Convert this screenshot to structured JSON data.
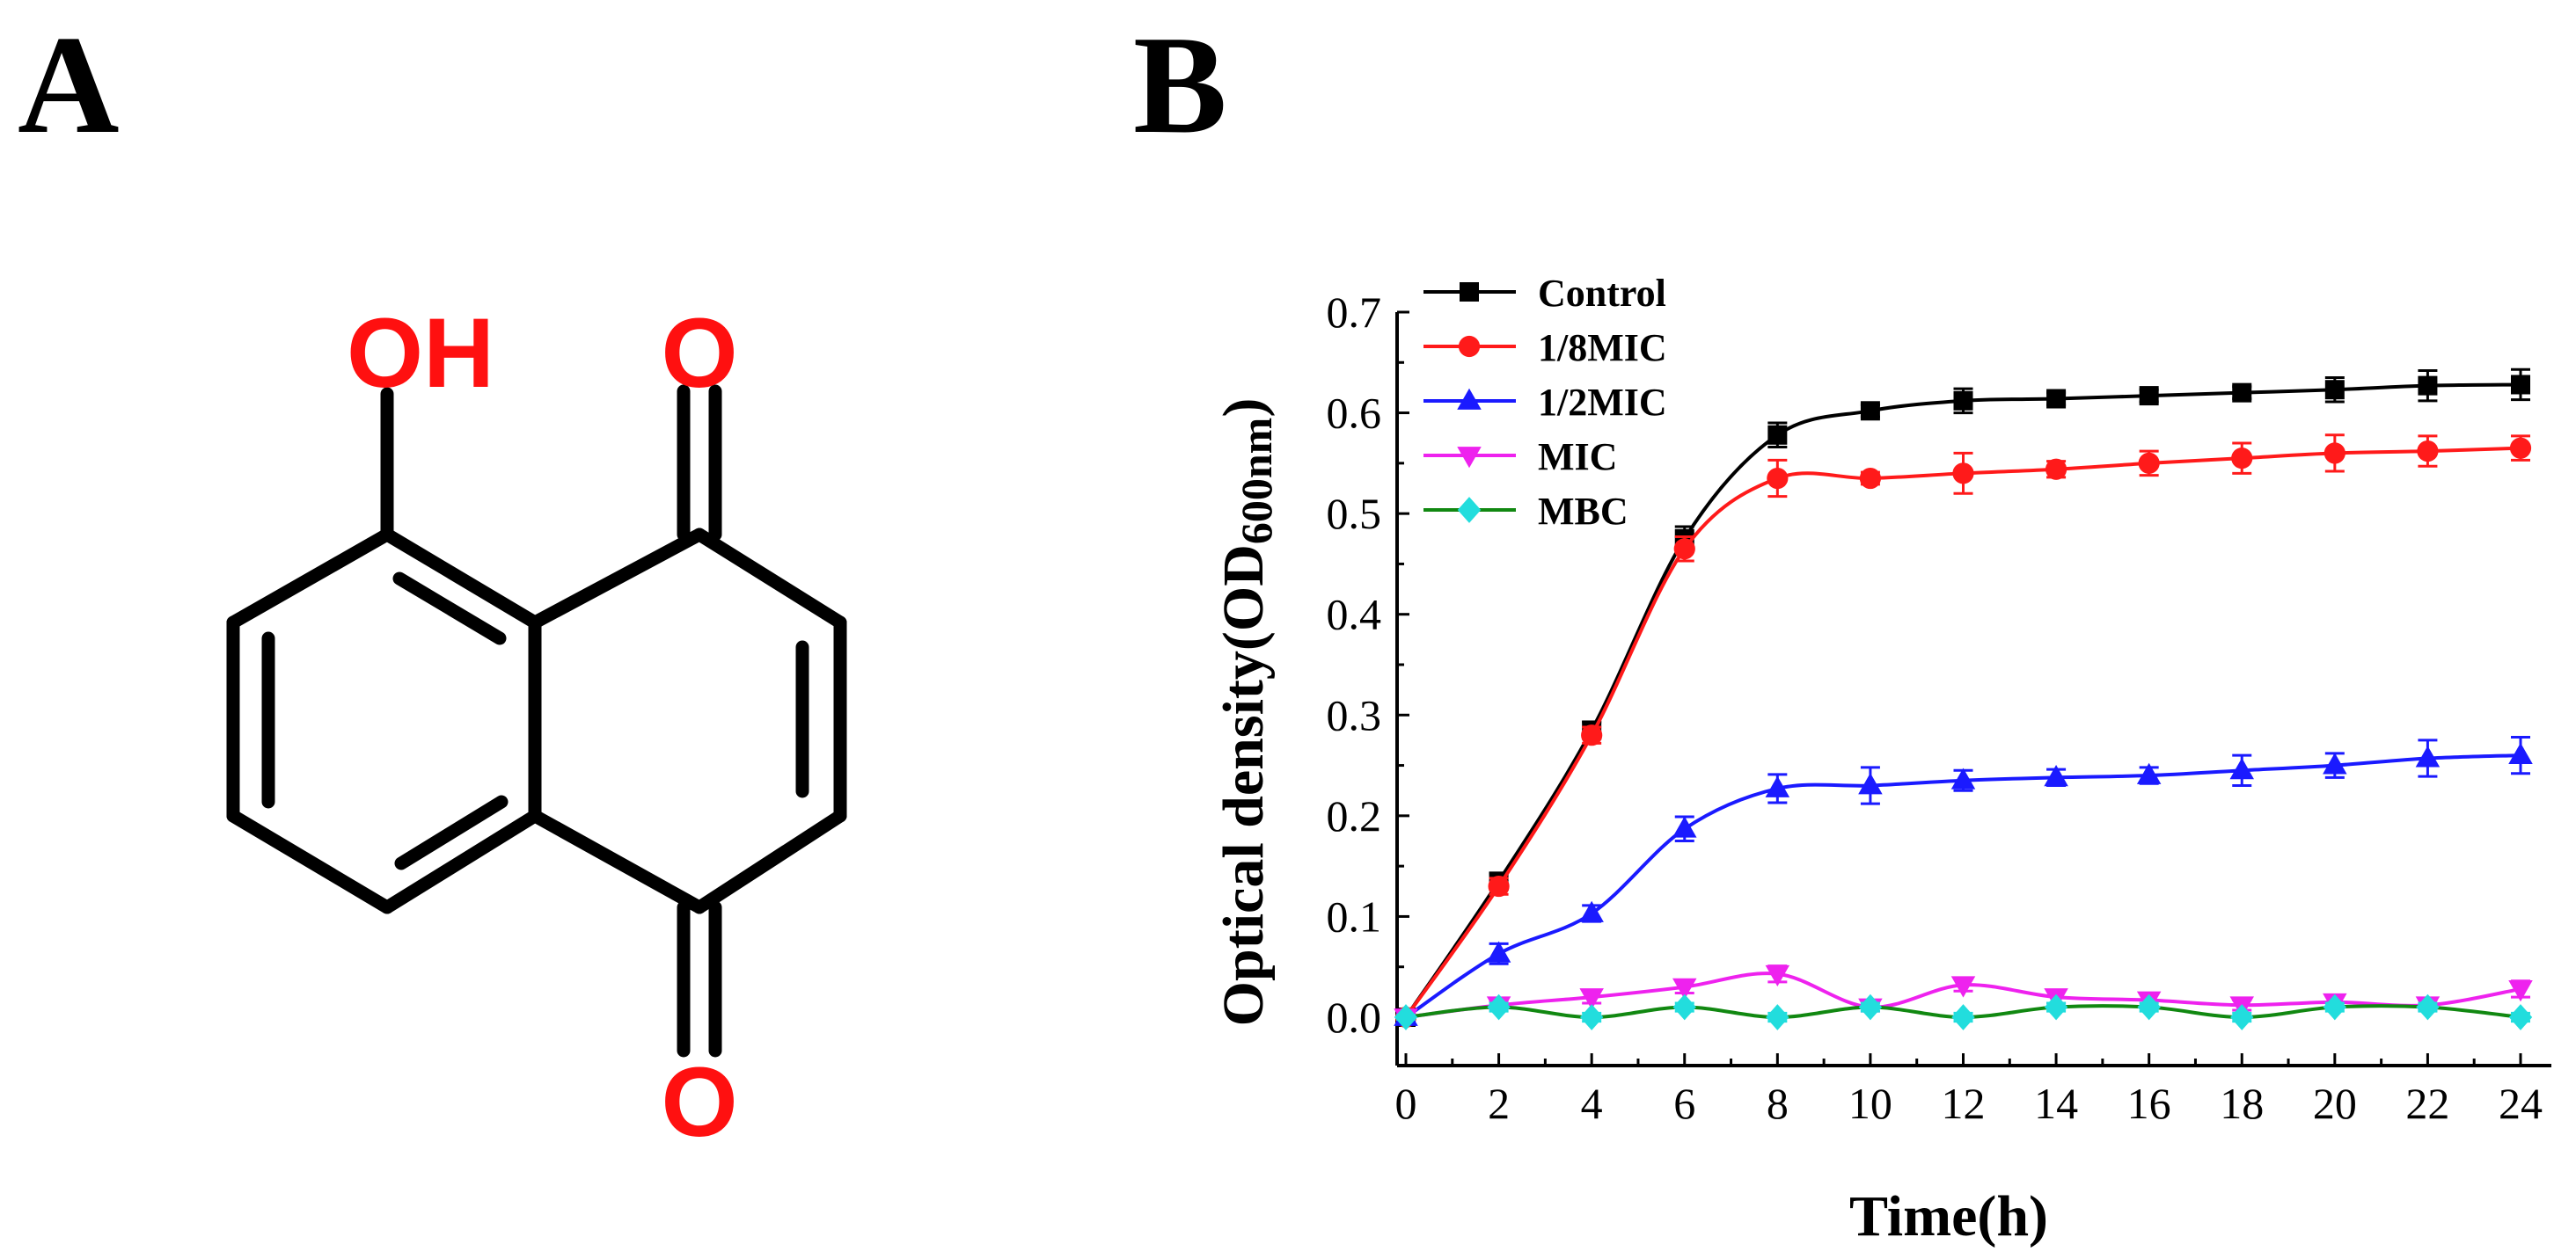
{
  "panels": {
    "a_label": "A",
    "b_label": "B"
  },
  "molecule": {
    "atoms": {
      "hydroxyl": "OH",
      "carbonyl_top": "O",
      "carbonyl_bottom": "O"
    },
    "atom_color": "#ff1010"
  },
  "chart_data": {
    "type": "line",
    "xlabel": "Time(h)",
    "ylabel": "Optical density(OD600nm)",
    "ylabel_parts": {
      "main": "Optical density(OD",
      "sub": "600nm",
      "end": ")"
    },
    "xlim": [
      0,
      24
    ],
    "ylim": [
      -0.05,
      0.7
    ],
    "x_ticks": [
      0,
      2,
      4,
      6,
      8,
      10,
      12,
      14,
      16,
      18,
      20,
      22,
      24
    ],
    "x_tick_labels": [
      "0",
      "2",
      "4",
      "6",
      "8",
      "10",
      "12",
      "14",
      "16",
      "18",
      "20",
      "22",
      "24"
    ],
    "y_ticks": [
      0.0,
      0.1,
      0.2,
      0.3,
      0.4,
      0.5,
      0.6,
      0.7
    ],
    "y_tick_labels": [
      "0.0",
      "0.1",
      "0.2",
      "0.3",
      "0.4",
      "0.5",
      "0.6",
      "0.7"
    ],
    "grid": false,
    "legend_position": "top-left",
    "x": [
      0,
      2,
      4,
      6,
      8,
      10,
      12,
      14,
      16,
      18,
      20,
      22,
      24
    ],
    "series": [
      {
        "name": "Control",
        "color": "#000000",
        "marker": "square",
        "values": [
          0.0,
          0.135,
          0.285,
          0.475,
          0.578,
          0.602,
          0.612,
          0.614,
          0.617,
          0.62,
          0.623,
          0.627,
          0.628
        ],
        "errors": [
          0.003,
          0.008,
          0.008,
          0.012,
          0.012,
          0.006,
          0.012,
          0.006,
          0.006,
          0.006,
          0.012,
          0.015,
          0.015
        ]
      },
      {
        "name": "1/8MIC",
        "color": "#ff1a1a",
        "marker": "circle",
        "values": [
          0.0,
          0.13,
          0.28,
          0.465,
          0.535,
          0.535,
          0.54,
          0.544,
          0.55,
          0.555,
          0.56,
          0.562,
          0.565
        ],
        "errors": [
          0.003,
          0.008,
          0.008,
          0.012,
          0.018,
          0.006,
          0.02,
          0.008,
          0.012,
          0.015,
          0.018,
          0.015,
          0.012
        ]
      },
      {
        "name": "1/2MIC",
        "color": "#1a1aff",
        "marker": "triangle-up",
        "values": [
          0.0,
          0.063,
          0.103,
          0.187,
          0.227,
          0.23,
          0.235,
          0.238,
          0.24,
          0.245,
          0.25,
          0.257,
          0.26
        ],
        "errors": [
          0.003,
          0.01,
          0.008,
          0.012,
          0.014,
          0.018,
          0.01,
          0.008,
          0.008,
          0.015,
          0.012,
          0.018,
          0.018
        ]
      },
      {
        "name": "MIC",
        "color": "#ee22ee",
        "marker": "triangle-down",
        "values": [
          0.0,
          0.012,
          0.02,
          0.03,
          0.043,
          0.01,
          0.032,
          0.02,
          0.017,
          0.012,
          0.015,
          0.012,
          0.028
        ],
        "errors": [
          0.002,
          0.004,
          0.006,
          0.006,
          0.008,
          0.004,
          0.006,
          0.006,
          0.006,
          0.005,
          0.006,
          0.005,
          0.008
        ]
      },
      {
        "name": "MBC",
        "color": "#118811",
        "marker_color": "#22dddd",
        "marker": "diamond",
        "values": [
          0.0,
          0.01,
          0.0,
          0.01,
          0.0,
          0.01,
          0.0,
          0.01,
          0.01,
          0.0,
          0.01,
          0.01,
          0.0
        ],
        "errors": [
          0.002,
          0.004,
          0.004,
          0.004,
          0.004,
          0.004,
          0.004,
          0.004,
          0.004,
          0.004,
          0.004,
          0.004,
          0.004
        ]
      }
    ]
  }
}
